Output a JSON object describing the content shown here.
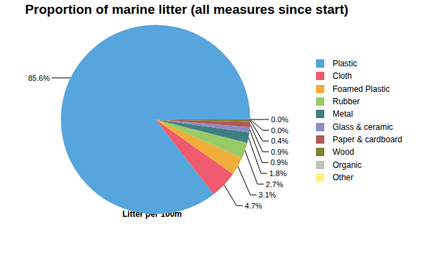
{
  "chart_data": {
    "type": "pie",
    "title": "Proportion of marine litter (all measures since start)",
    "subtitle": "Litter per 100m",
    "categories": [
      "Plastic",
      "Cloth",
      "Foamed Plastic",
      "Rubber",
      "Metal",
      "Glass & ceramic",
      "Paper & cardboard",
      "Wood",
      "Organic",
      "Other"
    ],
    "values": [
      85.6,
      4.7,
      3.1,
      2.7,
      1.8,
      0.9,
      0.9,
      0.4,
      0.0,
      0.0
    ],
    "value_labels": [
      "85.6%",
      "4.7%",
      "3.1%",
      "2.7%",
      "1.8%",
      "0.9%",
      "0.9%",
      "0.4%",
      "0.0%",
      "0.0%"
    ],
    "colors": [
      "#56a5dc",
      "#ef5a6f",
      "#f0ad3a",
      "#99cc66",
      "#3d8080",
      "#8c8cc4",
      "#b05a5a",
      "#808033",
      "#c0c0c0",
      "#ffee80"
    ],
    "data_labels": true,
    "legend": "right"
  }
}
